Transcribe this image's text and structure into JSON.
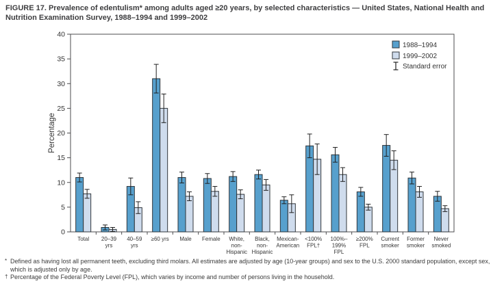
{
  "title": "FIGURE 17. Prevalence of edentulism* among adults aged ≥20 years, by selected characteristics — United States, National Health and Nutrition Examination Survey, 1988–1994 and 1999–2002",
  "colors": {
    "series1_fill": "#57a0cd",
    "series2_fill": "#cfdced",
    "bar_stroke": "#2f3439",
    "frame_stroke": "#4b4b4d",
    "error_stroke": "#1f1f1f",
    "text": "#333333"
  },
  "chart_data": {
    "type": "bar",
    "title": "",
    "xlabel": "",
    "ylabel": "Percentage",
    "ylim": [
      0,
      40
    ],
    "ytick_step": 5,
    "grid": false,
    "legend_position": "top-right-inside",
    "legend_error_label": "Standard error",
    "categories": [
      "Total",
      "20–39\nyrs",
      "40–59\nyrs",
      "≥60 yrs",
      "Male",
      "Female",
      "White,\nnon-\nHispanic",
      "Black,\nnon-\nHispanic",
      "Mexican-\nAmerican",
      "<100%\nFPL†",
      "100%–\n199%\nFPL",
      "≥200%\nFPL",
      "Current\nsmoker",
      "Former\nsmoker",
      "Never\nsmoked"
    ],
    "series": [
      {
        "name": "1988–1994",
        "values": [
          11.0,
          0.9,
          9.2,
          31.0,
          11.0,
          10.8,
          11.2,
          11.6,
          6.4,
          17.4,
          15.6,
          8.1,
          17.5,
          10.9,
          7.2
        ],
        "stderr": [
          0.9,
          0.5,
          1.7,
          2.9,
          1.1,
          1.0,
          1.0,
          0.9,
          0.7,
          2.4,
          1.5,
          0.9,
          2.2,
          1.2,
          1.0
        ]
      },
      {
        "name": "1999–2002",
        "values": [
          7.7,
          0.5,
          4.9,
          25.0,
          7.2,
          8.2,
          7.6,
          9.5,
          5.7,
          14.7,
          11.6,
          5.0,
          14.5,
          8.1,
          4.7
        ],
        "stderr": [
          0.9,
          0.4,
          1.2,
          2.9,
          0.9,
          1.0,
          0.9,
          1.1,
          1.8,
          3.1,
          1.4,
          0.6,
          1.9,
          1.1,
          0.6
        ]
      }
    ]
  },
  "footnotes": [
    {
      "marker": "*",
      "text": "Defined as having lost all permanent teeth, excluding third molars. All estimates are adjusted by age (10-year groups) and sex to the U.S. 2000 standard population, except sex, which is adjusted only by age."
    },
    {
      "marker": "†",
      "text": "Percentage of the Federal Poverty Level (FPL), which varies by income and number of persons living in the household."
    }
  ]
}
